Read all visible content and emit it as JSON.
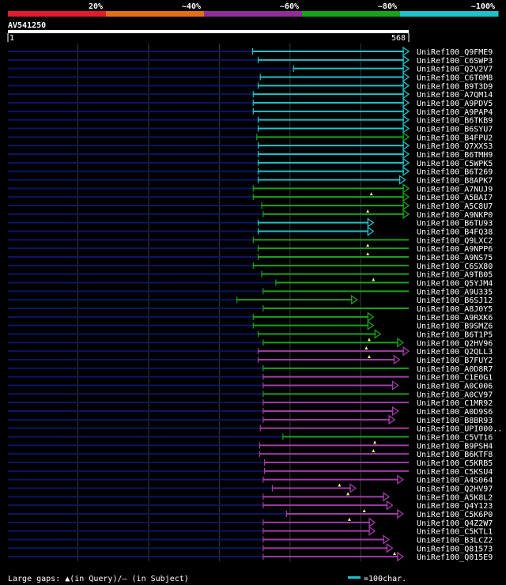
{
  "chart_data": {
    "type": "alignment_overview",
    "query": {
      "id": "AV541250",
      "start_label": "1",
      "end_label": "568",
      "start": 1,
      "end": 568
    },
    "identity_legend": [
      {
        "label": "20%",
        "color": "#e21b2f"
      },
      {
        "label": "~40%",
        "color": "#e56f16"
      },
      {
        "label": "~60%",
        "color": "#8f2e97"
      },
      {
        "label": "~80%",
        "color": "#18a31b"
      },
      {
        "label": "~100%",
        "color": "#1ec2c8"
      }
    ],
    "footer": {
      "gaps_text": "Large gaps: ▲(in Query)/– (in Subject)",
      "scale_text": "=100char."
    },
    "hits": [
      {
        "name": "UniRef100_Q9FME9",
        "start": 347,
        "end": 568,
        "color": "cyan",
        "arrow": true,
        "gaps": []
      },
      {
        "name": "UniRef100_C6SWP3",
        "start": 355,
        "end": 568,
        "color": "cyan",
        "arrow": true,
        "gaps": []
      },
      {
        "name": "UniRef100_Q2V2V7",
        "start": 405,
        "end": 568,
        "color": "cyan",
        "arrow": true,
        "gaps": []
      },
      {
        "name": "UniRef100_C6T0M8",
        "start": 358,
        "end": 568,
        "color": "cyan",
        "arrow": true,
        "gaps": []
      },
      {
        "name": "UniRef100_B9T3D9",
        "start": 355,
        "end": 568,
        "color": "cyan",
        "arrow": true,
        "gaps": []
      },
      {
        "name": "UniRef100_A7QM14",
        "start": 348,
        "end": 568,
        "color": "cyan",
        "arrow": true,
        "gaps": []
      },
      {
        "name": "UniRef100_A9PDV5",
        "start": 348,
        "end": 568,
        "color": "cyan",
        "arrow": true,
        "gaps": []
      },
      {
        "name": "UniRef100_A9PAP4",
        "start": 348,
        "end": 568,
        "color": "cyan",
        "arrow": true,
        "gaps": []
      },
      {
        "name": "UniRef100_B6TKB9",
        "start": 355,
        "end": 568,
        "color": "cyan",
        "arrow": true,
        "gaps": []
      },
      {
        "name": "UniRef100_B6SYU7",
        "start": 355,
        "end": 568,
        "color": "cyan",
        "arrow": true,
        "gaps": []
      },
      {
        "name": "UniRef100_B4FPU2",
        "start": 353,
        "end": 568,
        "color": "green",
        "arrow": true,
        "gaps": []
      },
      {
        "name": "UniRef100_Q7XXS3",
        "start": 355,
        "end": 568,
        "color": "cyan",
        "arrow": true,
        "gaps": []
      },
      {
        "name": "UniRef100_B6TMH9",
        "start": 355,
        "end": 568,
        "color": "cyan",
        "arrow": true,
        "gaps": []
      },
      {
        "name": "UniRef100_C5WPK5",
        "start": 355,
        "end": 568,
        "color": "cyan",
        "arrow": true,
        "gaps": []
      },
      {
        "name": "UniRef100_B6T269",
        "start": 355,
        "end": 568,
        "color": "cyan",
        "arrow": true,
        "gaps": []
      },
      {
        "name": "UniRef100_B8APK7",
        "start": 355,
        "end": 563,
        "color": "cyan",
        "arrow": true,
        "gaps": []
      },
      {
        "name": "UniRef100_A7NUJ9",
        "start": 348,
        "end": 568,
        "color": "green",
        "arrow": true,
        "gaps": []
      },
      {
        "name": "UniRef100_A5BAI7",
        "start": 348,
        "end": 568,
        "color": "green",
        "arrow": true,
        "gaps": [
          515
        ]
      },
      {
        "name": "UniRef100_A5C8U7",
        "start": 360,
        "end": 568,
        "color": "green",
        "arrow": true,
        "gaps": []
      },
      {
        "name": "UniRef100_A9NKP0",
        "start": 362,
        "end": 568,
        "color": "green",
        "arrow": true,
        "gaps": [
          510
        ]
      },
      {
        "name": "UniRef100_B6TU93",
        "start": 355,
        "end": 518,
        "color": "cyan",
        "arrow": true,
        "gaps": []
      },
      {
        "name": "UniRef100_B4FQ38",
        "start": 355,
        "end": 518,
        "color": "cyan",
        "arrow": true,
        "gaps": []
      },
      {
        "name": "UniRef100_Q9LXC2",
        "start": 348,
        "end": 568,
        "color": "green",
        "arrow": false,
        "gaps": []
      },
      {
        "name": "UniRef100_A9NPP6",
        "start": 355,
        "end": 568,
        "color": "green",
        "arrow": false,
        "gaps": [
          510
        ]
      },
      {
        "name": "UniRef100_A9NS75",
        "start": 355,
        "end": 568,
        "color": "green",
        "arrow": false,
        "gaps": [
          510
        ]
      },
      {
        "name": "UniRef100_C6SX80",
        "start": 348,
        "end": 568,
        "color": "green",
        "arrow": false,
        "gaps": []
      },
      {
        "name": "UniRef100_A9TB05",
        "start": 360,
        "end": 568,
        "color": "green",
        "arrow": false,
        "gaps": []
      },
      {
        "name": "UniRef100_Q5YJM4",
        "start": 380,
        "end": 568,
        "color": "green",
        "arrow": false,
        "gaps": [
          518
        ]
      },
      {
        "name": "UniRef100_A9U335",
        "start": 362,
        "end": 568,
        "color": "green",
        "arrow": false,
        "gaps": []
      },
      {
        "name": "UniRef100_B6SJ12",
        "start": 325,
        "end": 495,
        "color": "green",
        "arrow": true,
        "gaps": []
      },
      {
        "name": "UniRef100_A8J0Y5",
        "start": 362,
        "end": 568,
        "color": "green",
        "arrow": false,
        "gaps": []
      },
      {
        "name": "UniRef100_A9RXK6",
        "start": 348,
        "end": 518,
        "color": "green",
        "arrow": true,
        "gaps": []
      },
      {
        "name": "UniRef100_B9SMZ6",
        "start": 348,
        "end": 518,
        "color": "green",
        "arrow": true,
        "gaps": []
      },
      {
        "name": "UniRef100_B6T1P5",
        "start": 355,
        "end": 528,
        "color": "green",
        "arrow": true,
        "gaps": []
      },
      {
        "name": "UniRef100_Q2HV96",
        "start": 362,
        "end": 560,
        "color": "green",
        "arrow": true,
        "gaps": [
          512
        ]
      },
      {
        "name": "UniRef100_Q2QLL3",
        "start": 355,
        "end": 568,
        "color": "magenta",
        "arrow": true,
        "gaps": [
          508
        ]
      },
      {
        "name": "UniRef100_B7FUY2",
        "start": 355,
        "end": 555,
        "color": "magenta",
        "arrow": true,
        "gaps": [
          512
        ]
      },
      {
        "name": "UniRef100_A0D8R7",
        "start": 362,
        "end": 568,
        "color": "green",
        "arrow": false,
        "gaps": []
      },
      {
        "name": "UniRef100_C1E0G1",
        "start": 362,
        "end": 568,
        "color": "magenta",
        "arrow": false,
        "gaps": []
      },
      {
        "name": "UniRef100_A0C006",
        "start": 362,
        "end": 553,
        "color": "magenta",
        "arrow": true,
        "gaps": []
      },
      {
        "name": "UniRef100_A0CV97",
        "start": 362,
        "end": 568,
        "color": "green",
        "arrow": false,
        "gaps": []
      },
      {
        "name": "UniRef100_C1MR92",
        "start": 362,
        "end": 568,
        "color": "magenta",
        "arrow": false,
        "gaps": []
      },
      {
        "name": "UniRef100_A0D9S6",
        "start": 362,
        "end": 553,
        "color": "magenta",
        "arrow": true,
        "gaps": []
      },
      {
        "name": "UniRef100_B8BR93",
        "start": 362,
        "end": 548,
        "color": "magenta",
        "arrow": true,
        "gaps": []
      },
      {
        "name": "UniRef100_UPI000..",
        "start": 358,
        "end": 568,
        "color": "magenta",
        "arrow": false,
        "gaps": []
      },
      {
        "name": "UniRef100_C5VT16",
        "start": 390,
        "end": 568,
        "color": "green",
        "arrow": false,
        "gaps": []
      },
      {
        "name": "UniRef100_B9PSH4",
        "start": 357,
        "end": 568,
        "color": "magenta",
        "arrow": false,
        "gaps": [
          520
        ]
      },
      {
        "name": "UniRef100_B6KTF8",
        "start": 357,
        "end": 568,
        "color": "magenta",
        "arrow": false,
        "gaps": [
          518
        ]
      },
      {
        "name": "UniRef100_C5KRB5",
        "start": 364,
        "end": 568,
        "color": "magenta",
        "arrow": false,
        "gaps": []
      },
      {
        "name": "UniRef100_C5KSU4",
        "start": 364,
        "end": 568,
        "color": "magenta",
        "arrow": false,
        "gaps": []
      },
      {
        "name": "UniRef100_A4S064",
        "start": 362,
        "end": 560,
        "color": "magenta",
        "arrow": true,
        "gaps": []
      },
      {
        "name": "UniRef100_Q2HV97",
        "start": 375,
        "end": 493,
        "color": "magenta",
        "arrow": true,
        "gaps": [
          470
        ]
      },
      {
        "name": "UniRef100_A5K8L2",
        "start": 362,
        "end": 540,
        "color": "magenta",
        "arrow": true,
        "gaps": [
          482
        ]
      },
      {
        "name": "UniRef100_Q4Y123",
        "start": 362,
        "end": 545,
        "color": "magenta",
        "arrow": true,
        "gaps": []
      },
      {
        "name": "UniRef100_C5K6P0",
        "start": 395,
        "end": 560,
        "color": "magenta",
        "arrow": true,
        "gaps": [
          505
        ]
      },
      {
        "name": "UniRef100_Q4Z2W7",
        "start": 362,
        "end": 520,
        "color": "magenta",
        "arrow": true,
        "gaps": [
          484
        ]
      },
      {
        "name": "UniRef100_C5KTL1",
        "start": 362,
        "end": 520,
        "color": "magenta",
        "arrow": true,
        "gaps": []
      },
      {
        "name": "UniRef100_B3LCZ2",
        "start": 362,
        "end": 540,
        "color": "magenta",
        "arrow": true,
        "gaps": []
      },
      {
        "name": "UniRef100_Q81573",
        "start": 362,
        "end": 545,
        "color": "magenta",
        "arrow": true,
        "gaps": []
      },
      {
        "name": "UniRef100_Q015E9",
        "start": 362,
        "end": 560,
        "color": "magenta",
        "arrow": true,
        "gaps": [
          548
        ]
      }
    ]
  },
  "colors": {
    "cyan": "#1ec2c8",
    "green": "#18a31b",
    "magenta": "#a13ca6",
    "navy": "#0b1566",
    "grid": "#3a3a3a",
    "query": "#ffffff",
    "gap_marker": "#f5f08a",
    "background": "#000000"
  }
}
